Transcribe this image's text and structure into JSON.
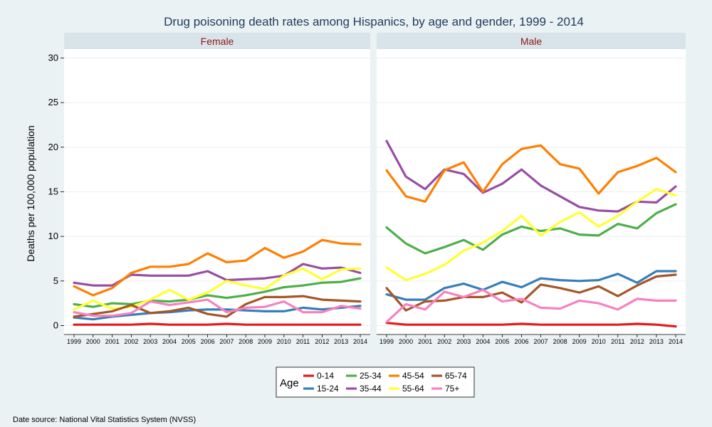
{
  "chart_data": {
    "type": "line",
    "title": "Drug poisoning death rates among Hispanics, by age and gender, 1999 - 2014",
    "ylabel": "Deaths per 100,000 population",
    "xlabel": "",
    "ylim": [
      -1,
      31
    ],
    "yticks": [
      0,
      5,
      10,
      15,
      20,
      25,
      30
    ],
    "x": [
      "1999",
      "2000",
      "2001",
      "2002",
      "2003",
      "2004",
      "2005",
      "2006",
      "2007",
      "2008",
      "2009",
      "2010",
      "2011",
      "2012",
      "2013",
      "2014"
    ],
    "legend_title": "Age",
    "legend_position": "bottom",
    "grid": true,
    "source": "Date source: National Vital Statistics System (NVSS)",
    "panels": [
      {
        "name": "Female",
        "series": [
          {
            "name": "0-14",
            "color": "#e41a1c",
            "values": [
              0.1,
              0.1,
              0.1,
              0.1,
              0.2,
              0.1,
              0.1,
              0.1,
              0.2,
              0.1,
              0.1,
              0.1,
              0.1,
              0.1,
              0.1,
              0.1
            ]
          },
          {
            "name": "15-24",
            "color": "#377eb8",
            "values": [
              0.9,
              0.7,
              1.0,
              1.2,
              1.4,
              1.5,
              1.7,
              1.8,
              1.8,
              1.7,
              1.6,
              1.6,
              2.0,
              1.8,
              2.0,
              2.2
            ]
          },
          {
            "name": "25-34",
            "color": "#4daf4a",
            "values": [
              2.4,
              2.1,
              2.5,
              2.4,
              2.8,
              2.7,
              2.9,
              3.4,
              3.1,
              3.4,
              3.8,
              4.3,
              4.5,
              4.8,
              4.9,
              5.3
            ]
          },
          {
            "name": "35-44",
            "color": "#984ea3",
            "values": [
              4.8,
              4.5,
              4.5,
              5.7,
              5.6,
              5.6,
              5.6,
              6.1,
              5.1,
              5.2,
              5.3,
              5.6,
              6.9,
              6.4,
              6.5,
              5.9
            ]
          },
          {
            "name": "45-54",
            "color": "#ff7f00",
            "values": [
              4.4,
              3.4,
              4.2,
              5.9,
              6.6,
              6.6,
              6.9,
              8.1,
              7.1,
              7.3,
              8.7,
              7.6,
              8.3,
              9.6,
              9.2,
              9.1
            ]
          },
          {
            "name": "55-64",
            "color": "#ffff33",
            "values": [
              1.8,
              2.8,
              1.9,
              2.1,
              2.9,
              4.0,
              2.9,
              3.7,
              5.0,
              4.5,
              4.1,
              5.6,
              6.4,
              5.2,
              6.3,
              6.4
            ]
          },
          {
            "name": "65-74",
            "color": "#a65628",
            "values": [
              1.0,
              1.3,
              1.6,
              2.3,
              1.4,
              1.6,
              2.0,
              1.3,
              1.0,
              2.4,
              3.2,
              3.2,
              3.3,
              2.9,
              2.8,
              2.7
            ]
          },
          {
            "name": "75+",
            "color": "#f781bf",
            "values": [
              1.5,
              1.1,
              1.1,
              1.4,
              2.7,
              2.3,
              2.6,
              2.9,
              1.5,
              2.0,
              2.1,
              2.7,
              1.5,
              1.5,
              2.2,
              1.9
            ]
          }
        ]
      },
      {
        "name": "Male",
        "series": [
          {
            "name": "0-14",
            "color": "#e41a1c",
            "values": [
              0.3,
              0.1,
              0.1,
              0.1,
              0.1,
              0.1,
              0.1,
              0.2,
              0.1,
              0.1,
              0.1,
              0.1,
              0.1,
              0.2,
              0.1,
              -0.1
            ]
          },
          {
            "name": "15-24",
            "color": "#377eb8",
            "values": [
              3.5,
              2.9,
              2.9,
              4.2,
              4.7,
              4.0,
              4.9,
              4.3,
              5.3,
              5.1,
              5.0,
              5.1,
              5.8,
              4.8,
              6.1,
              6.1
            ]
          },
          {
            "name": "25-34",
            "color": "#4daf4a",
            "values": [
              11.0,
              9.2,
              8.1,
              8.8,
              9.6,
              8.5,
              10.2,
              11.1,
              10.6,
              10.9,
              10.2,
              10.1,
              11.4,
              10.9,
              12.6,
              13.6
            ]
          },
          {
            "name": "35-44",
            "color": "#984ea3",
            "values": [
              20.7,
              16.7,
              15.3,
              17.5,
              17.0,
              14.9,
              15.9,
              17.5,
              15.7,
              14.5,
              13.3,
              12.9,
              12.8,
              13.9,
              13.8,
              15.6
            ]
          },
          {
            "name": "45-54",
            "color": "#ff7f00",
            "values": [
              17.4,
              14.5,
              13.9,
              17.4,
              18.3,
              15.0,
              18.1,
              19.8,
              20.2,
              18.1,
              17.6,
              14.8,
              17.2,
              17.9,
              18.8,
              17.2
            ]
          },
          {
            "name": "55-64",
            "color": "#ffff33",
            "values": [
              6.5,
              5.1,
              5.8,
              6.8,
              8.4,
              9.3,
              10.6,
              12.3,
              10.1,
              11.6,
              12.7,
              11.1,
              12.3,
              13.9,
              15.3,
              14.6
            ]
          },
          {
            "name": "65-74",
            "color": "#a65628",
            "values": [
              4.2,
              1.7,
              2.7,
              2.8,
              3.2,
              3.2,
              3.7,
              2.6,
              4.6,
              4.2,
              3.7,
              4.4,
              3.3,
              4.5,
              5.5,
              5.7
            ]
          },
          {
            "name": "75+",
            "color": "#f781bf",
            "values": [
              0.4,
              2.4,
              1.8,
              3.8,
              3.2,
              4.0,
              2.7,
              3.0,
              2.0,
              1.9,
              2.8,
              2.5,
              1.8,
              3.0,
              2.8,
              2.8
            ]
          }
        ]
      }
    ]
  }
}
